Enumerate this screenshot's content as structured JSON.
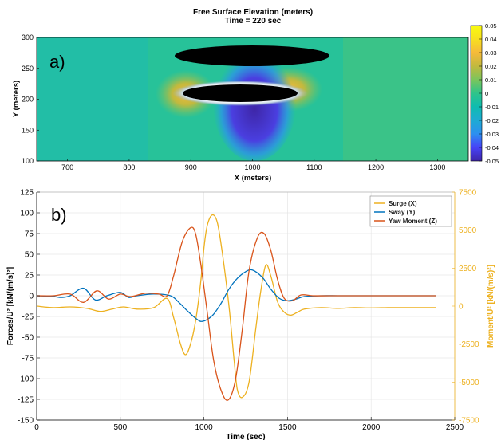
{
  "chart_data": [
    {
      "type": "heatmap",
      "panel_label": "a)",
      "title": "Free Surface Elevation (meters)",
      "subtitle": "Time  = 220 sec",
      "xlabel": "X (meters)",
      "ylabel": "Y (meters)",
      "xlim": [
        650,
        1350
      ],
      "ylim": [
        100,
        300
      ],
      "xticks": [
        700,
        800,
        900,
        1000,
        1100,
        1200,
        1300
      ],
      "yticks": [
        100,
        150,
        200,
        250,
        300
      ],
      "colorbar": {
        "range": [
          -0.05,
          0.05
        ],
        "ticks": [
          "0.05",
          "0.04",
          "0.03",
          "0.02",
          "0.01",
          "0",
          "-0.01",
          "-0.02",
          "-0.03",
          "-0.04",
          "-0.05"
        ],
        "colormap": "parula",
        "colors": [
          "#3e26a8",
          "#4743f7",
          "#2d8ff0",
          "#1eabd3",
          "#0fbcb0",
          "#2fc48a",
          "#7bc55c",
          "#c1b93e",
          "#f6ba3a",
          "#f7e01f",
          "#f9fb0e"
        ]
      },
      "background_value": -0.003,
      "features": [
        {
          "name": "ellipse-black-top",
          "cx": 1000,
          "cy": 285,
          "rx": 120,
          "ry": 12
        },
        {
          "name": "ellipse-black-mid",
          "cx": 960,
          "cy": 210,
          "rx": 75,
          "ry": 12
        },
        {
          "name": "trough-blue",
          "cx": 965,
          "cy": 190,
          "rx": 55,
          "ry": 70,
          "value": -0.045
        },
        {
          "name": "crest-left",
          "cx": 890,
          "cy": 210,
          "value": 0.03
        },
        {
          "name": "crest-right",
          "cx": 1040,
          "cy": 215,
          "value": 0.03
        }
      ]
    },
    {
      "type": "line",
      "panel_label": "b)",
      "xlabel": "Time (sec)",
      "ylabel": "Forces/U² [kN/(m/s)²]",
      "y2label": "Moment/U² [kN/(m/s)²]",
      "xlim": [
        0,
        2500
      ],
      "ylim": [
        -150,
        125
      ],
      "y2lim": [
        -7500,
        7500
      ],
      "xticks": [
        0,
        500,
        1000,
        1500,
        2000,
        2500
      ],
      "yticks": [
        125,
        100,
        75,
        50,
        25,
        0,
        -25,
        -50,
        -75,
        -100,
        -125,
        -150
      ],
      "y2ticks": [
        7500,
        5000,
        2500,
        0,
        -2500,
        -5000,
        -7500
      ],
      "grid": true,
      "legend_position": "top-right",
      "series": [
        {
          "name": "Surge (X)",
          "axis": "y2",
          "color": "#edb120",
          "x": [
            0,
            100,
            200,
            300,
            380,
            450,
            520,
            600,
            700,
            780,
            820,
            860,
            890,
            920,
            950,
            980,
            1000,
            1020,
            1050,
            1080,
            1110,
            1150,
            1180,
            1200,
            1230,
            1270,
            1310,
            1340,
            1370,
            1400,
            1440,
            1480,
            1520,
            1560,
            1600,
            1700,
            1800,
            1900,
            2000,
            2100,
            2200,
            2300,
            2390
          ],
          "values": [
            0,
            -100,
            -50,
            -150,
            -350,
            -200,
            -50,
            -200,
            -100,
            500,
            -800,
            -2500,
            -3200,
            -2500,
            -1000,
            1500,
            3800,
            5300,
            6000,
            5500,
            3500,
            0,
            -3500,
            -5500,
            -6000,
            -5000,
            -1500,
            1000,
            2700,
            2000,
            300,
            -400,
            -600,
            -400,
            -200,
            -100,
            -150,
            -100,
            -120,
            -100,
            -100,
            -100,
            -100
          ]
        },
        {
          "name": "Sway (Y)",
          "color": "#0072bd",
          "x": [
            0,
            100,
            150,
            200,
            280,
            350,
            420,
            500,
            550,
            600,
            700,
            800,
            850,
            900,
            950,
            990,
            1050,
            1100,
            1150,
            1200,
            1250,
            1290,
            1350,
            1400,
            1450,
            1500,
            1550,
            1600,
            1700,
            1800,
            1900,
            2000,
            2100,
            2200,
            2300,
            2390
          ],
          "values": [
            0,
            -1,
            -2,
            0,
            9,
            -5,
            0,
            4,
            -2,
            0,
            2,
            0,
            -8,
            -18,
            -27,
            -31,
            -24,
            -10,
            8,
            21,
            29,
            31,
            22,
            8,
            -3,
            -6,
            -4,
            -1,
            0,
            0,
            0,
            0,
            0,
            0,
            0,
            0
          ]
        },
        {
          "name": "Yaw Moment (Z)",
          "color": "#d95319",
          "x": [
            0,
            100,
            200,
            280,
            360,
            430,
            500,
            560,
            650,
            730,
            780,
            820,
            870,
            920,
            950,
            980,
            1020,
            1060,
            1110,
            1150,
            1190,
            1230,
            1270,
            1320,
            1360,
            1400,
            1440,
            1480,
            1530,
            1580,
            1650,
            1750,
            1900,
            2000,
            2100,
            2200,
            2300,
            2390
          ],
          "values": [
            0,
            0,
            2,
            -8,
            6,
            -4,
            2,
            -1,
            3,
            2,
            0,
            25,
            65,
            82,
            75,
            40,
            -20,
            -80,
            -118,
            -125,
            -100,
            -40,
            30,
            70,
            75,
            55,
            20,
            -3,
            -6,
            1,
            0,
            0,
            0,
            0,
            0,
            0,
            0,
            0
          ]
        }
      ]
    }
  ]
}
